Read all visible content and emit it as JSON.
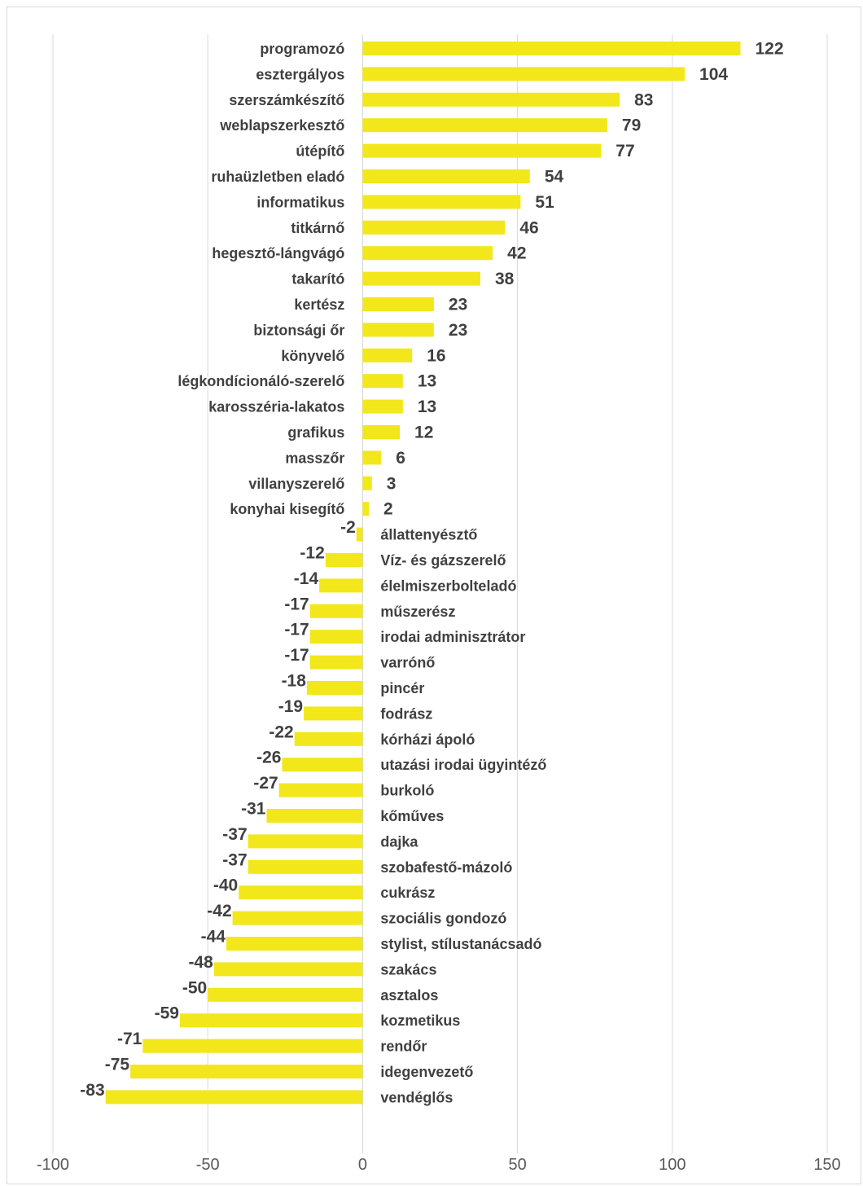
{
  "chart_data": {
    "type": "bar",
    "orientation": "horizontal",
    "title": "",
    "xlabel": "",
    "ylabel": "",
    "xlim": [
      -100,
      150
    ],
    "x_ticks": [
      "-100",
      "-50",
      "0",
      "50",
      "100",
      "150"
    ],
    "x_tick_values": [
      -100,
      -50,
      0,
      50,
      100,
      150
    ],
    "grid": "vertical",
    "legend": "none",
    "bar_color": "#f2e71a",
    "categories": [
      "programozó",
      "esztergályos",
      "szerszámkészítő",
      "weblapszerkesztő",
      "útépítő",
      "ruhaüzletben eladó",
      "informatikus",
      "titkárnő",
      "hegesztő-lángvágó",
      "takarító",
      "kertész",
      "biztonsági őr",
      "könyvelő",
      "légkondícionáló-szerelő",
      "karosszéria-lakatos",
      "grafikus",
      "masszőr",
      "villanyszerelő",
      "konyhai kisegítő",
      "állattenyésztő",
      "Víz- és gázszerelő",
      "élelmiszerbolteladó",
      "műszerész",
      "irodai adminisztrátor",
      "varrónő",
      "pincér",
      "fodrász",
      "kórházi ápoló",
      "utazási irodai ügyintéző",
      "burkoló",
      "kőműves",
      "dajka",
      "szobafestő-mázoló",
      "cukrász",
      "szociális gondozó",
      "stylist, stílustanácsadó",
      "szakács",
      "asztalos",
      "kozmetikus",
      "rendőr",
      "idegenvezető",
      "vendéglős"
    ],
    "values": [
      122,
      104,
      83,
      79,
      77,
      54,
      51,
      46,
      42,
      38,
      23,
      23,
      16,
      13,
      13,
      12,
      6,
      3,
      2,
      -2,
      -12,
      -14,
      -17,
      -17,
      -17,
      -18,
      -19,
      -22,
      -26,
      -27,
      -31,
      -37,
      -37,
      -40,
      -42,
      -44,
      -48,
      -50,
      -59,
      -71,
      -75,
      -83
    ]
  }
}
